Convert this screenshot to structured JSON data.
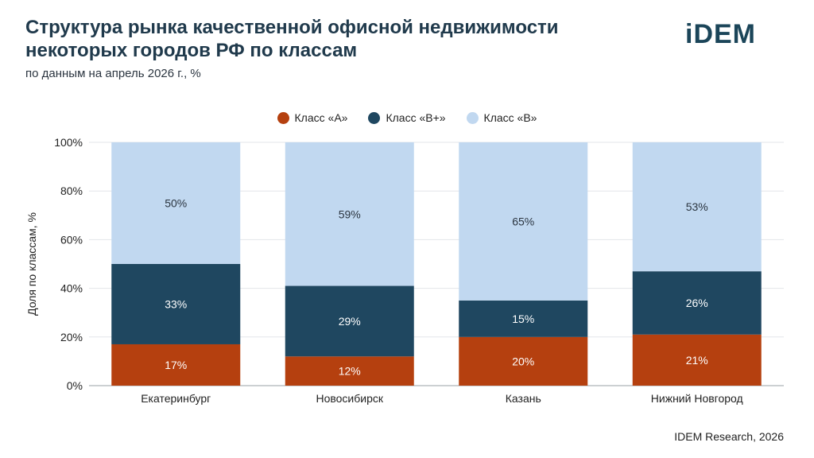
{
  "header": {
    "title": "Структура рынка качественной офисной недвижимости некоторых городов РФ по классам",
    "subtitle": "по данным на апрель 2026 г., %",
    "logo": "iDEM"
  },
  "footer": {
    "source": "IDEM Research, 2026"
  },
  "chart_data": {
    "type": "bar",
    "stacked": true,
    "categories": [
      "Екатеринбург",
      "Новосибирск",
      "Казань",
      "Нижний Новгород"
    ],
    "series": [
      {
        "name": "Класс «А»",
        "color": "#b5400f",
        "values": [
          17,
          12,
          20,
          21
        ],
        "labels": [
          "17%",
          "12%",
          "20%",
          "21%"
        ]
      },
      {
        "name": "Класс «В+»",
        "color": "#1f4760",
        "values": [
          33,
          29,
          15,
          26
        ],
        "labels": [
          "33%",
          "29%",
          "15%",
          "26%"
        ]
      },
      {
        "name": "Класс «В»",
        "color": "#c1d8f0",
        "values": [
          50,
          59,
          65,
          53
        ],
        "labels": [
          "50%",
          "59%",
          "65%",
          "53%"
        ]
      }
    ],
    "ylabel": "Доля по классам, %",
    "ylim": [
      0,
      100
    ],
    "yticks": [
      "0%",
      "20%",
      "40%",
      "60%",
      "80%",
      "100%"
    ],
    "grid": true,
    "legend_position": "top-center"
  }
}
